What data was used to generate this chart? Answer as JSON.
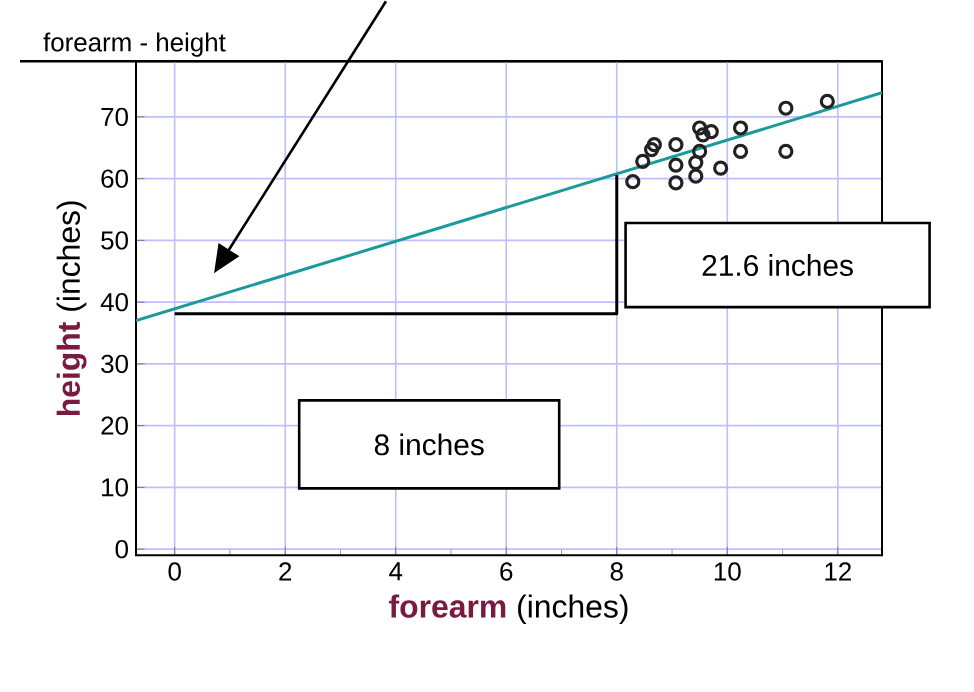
{
  "chart_data": {
    "type": "scatter",
    "title": "forearm - height",
    "xlabel": "**forearm** (inches)",
    "ylabel": "**height** (inches)",
    "series": [
      {
        "type": "scatter",
        "color": "#222222",
        "marker": "circle",
        "x": [
          8.29,
          8.47,
          8.63,
          8.68,
          9.07,
          9.07,
          9.07,
          9.43,
          9.43,
          9.5,
          9.5,
          9.56,
          9.71,
          9.88,
          10.24,
          10.24,
          11.06,
          11.06,
          11.81
        ],
        "values": [
          59.5,
          62.8,
          64.7,
          65.5,
          65.5,
          62.2,
          59.3,
          60.4,
          62.6,
          64.4,
          68.2,
          67.1,
          67.6,
          61.7,
          68.2,
          64.4,
          71.4,
          64.4,
          72.5
        ]
      },
      {
        "type": "line",
        "color": "#1a9a9a",
        "marker": "none",
        "x": [
          -0.7,
          12.8
        ],
        "values": [
          37.0,
          73.9
        ]
      },
      {
        "type": "line",
        "color": "#000000",
        "marker": "none",
        "x": [
          0,
          8,
          8
        ],
        "values": [
          38.1,
          38.1,
          60.6
        ]
      }
    ],
    "annotations": [
      "8 inches",
      "21.6 inches"
    ],
    "xlim": [
      -0.7,
      12.8
    ],
    "ylim": [
      -1,
      79
    ],
    "xticks": [
      0,
      2,
      4,
      6,
      8,
      10,
      12
    ],
    "yticks": [
      0,
      10,
      20,
      30,
      40,
      50,
      60,
      70
    ],
    "grid": true
  }
}
